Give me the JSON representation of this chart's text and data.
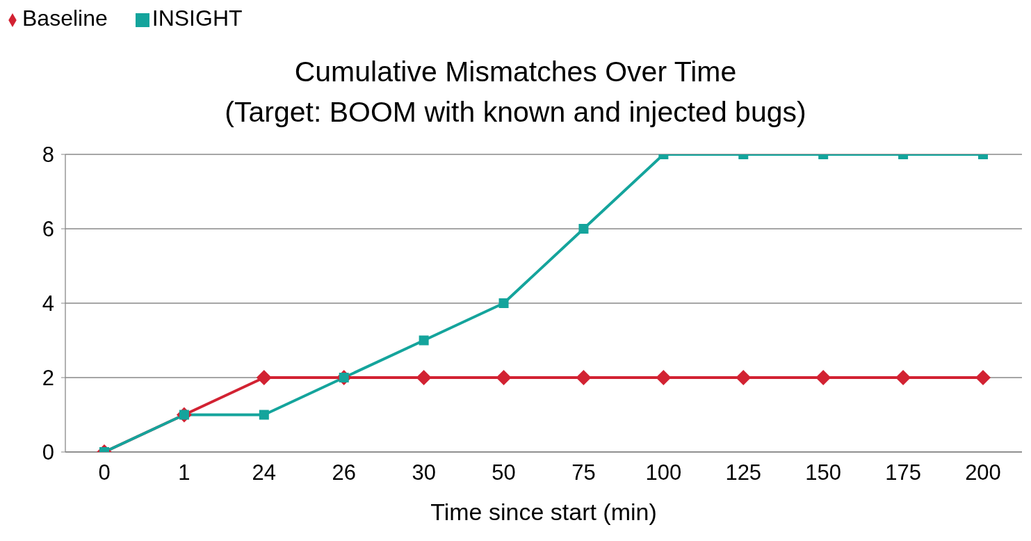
{
  "chart_data": {
    "type": "line",
    "title": "Cumulative Mismatches Over Time\n(Target: BOOM with known and injected bugs)",
    "xlabel": "Time since start (min)",
    "categories": [
      "0",
      "1",
      "24",
      "26",
      "30",
      "50",
      "75",
      "100",
      "125",
      "150",
      "175",
      "200"
    ],
    "series": [
      {
        "name": "Baseline",
        "color": "#d22232",
        "marker": "diamond",
        "values": [
          0,
          1,
          2,
          2,
          2,
          2,
          2,
          2,
          2,
          2,
          2,
          2
        ]
      },
      {
        "name": "INSIGHT",
        "color": "#14a49c",
        "marker": "square",
        "values": [
          0,
          1,
          1,
          2,
          3,
          4,
          6,
          8,
          8,
          8,
          8,
          8
        ]
      }
    ],
    "ylim": [
      0,
      8
    ],
    "yticks": [
      0,
      2,
      4,
      6,
      8
    ],
    "grid": "y",
    "legend": "top left",
    "line_style": "solid"
  }
}
